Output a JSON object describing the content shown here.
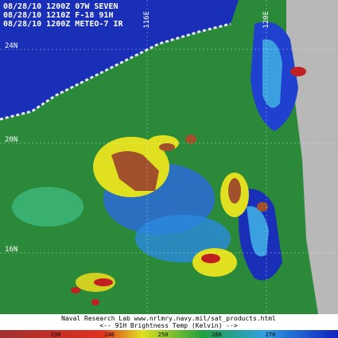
{
  "header": {
    "lines": [
      "08/28/10 1200Z 07W SEVEN",
      "08/28/10 1210Z F-18 91H",
      "08/28/10 1200Z METEO-7 IR"
    ]
  },
  "grid_labels": {
    "longitudes": [
      "116E",
      "120E"
    ],
    "latitudes": [
      "24N",
      "20N",
      "16N"
    ]
  },
  "footer": {
    "credit": "Naval Research Lab www.nrlmry.navy.mil/sat_products.html",
    "caption": "<-- 91H Brightness Temp (Kelvin) -->"
  },
  "colorbar": {
    "ticks": [
      "230",
      "240",
      "250",
      "260",
      "270"
    ]
  }
}
